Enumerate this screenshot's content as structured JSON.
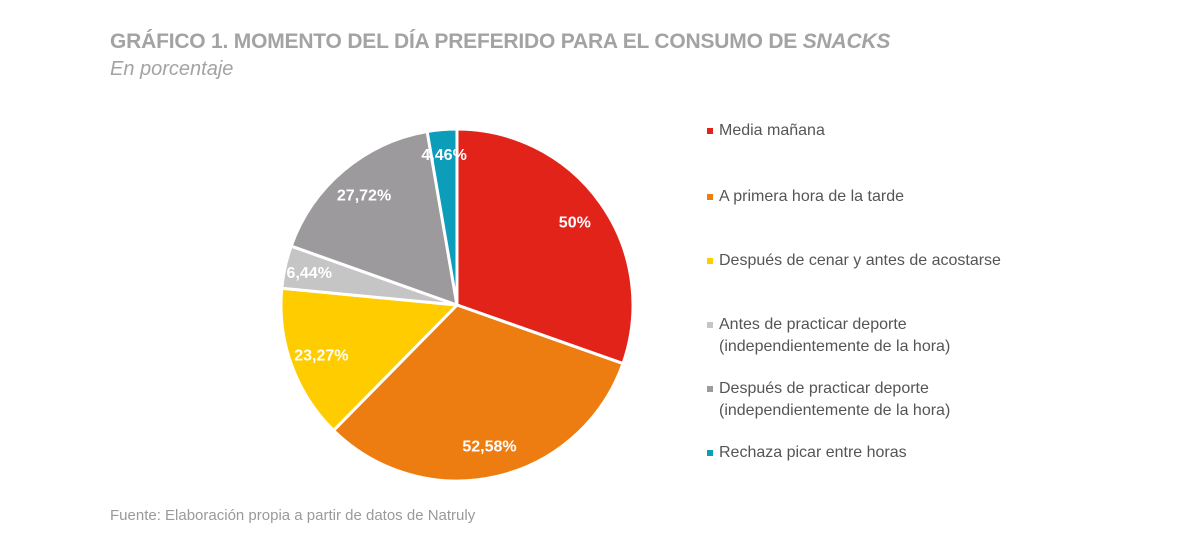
{
  "chart_data": {
    "type": "pie",
    "title": "GRÁFICO 1. MOMENTO DEL DÍA PREFERIDO PARA EL CONSUMO DE",
    "title_italic": "SNACKS",
    "subtitle": "En porcentaje",
    "slices": [
      {
        "label": "Media mañana",
        "value": 50,
        "display": "50%",
        "color": "#e2231a"
      },
      {
        "label": "A primera hora de la tarde",
        "value": 52.58,
        "display": "52,58%",
        "color": "#ee7d11"
      },
      {
        "label": "Después de cenar y antes de acostarse",
        "value": 23.27,
        "display": "23,27%",
        "color": "#ffcc00"
      },
      {
        "label": "Antes de practicar deporte",
        "label2": "(independientemente de la hora)",
        "value": 6.44,
        "display": "6,44%",
        "color": "#c6c5c6"
      },
      {
        "label": "Después de practicar deporte",
        "label2": "(independientemente de la hora)",
        "value": 27.72,
        "display": "27,72%",
        "color": "#9c9a9d"
      },
      {
        "label": "Rechaza picar entre horas",
        "value": 4.46,
        "display": "4,46%",
        "color": "#0c9dbb"
      }
    ],
    "legend_position": "right",
    "source": "Fuente: Elaboración propia a partir de datos de Natruly"
  }
}
